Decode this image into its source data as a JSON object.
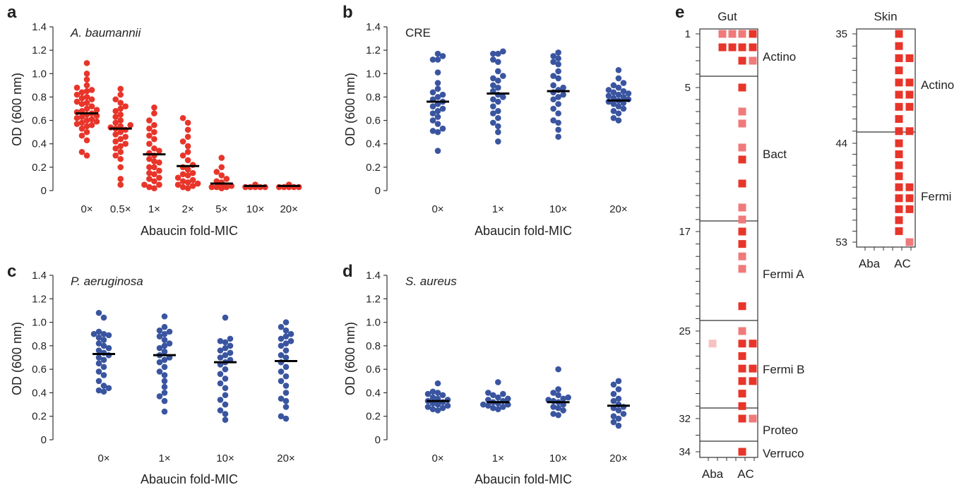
{
  "panels": [
    {
      "id": "a",
      "letter": "a",
      "label": "A. baumannii",
      "label_italic": true,
      "xlabel": "Abaucin fold-MIC",
      "ylabel": "OD (600 nm)"
    },
    {
      "id": "b",
      "letter": "b",
      "label": "CRE",
      "label_italic": false,
      "xlabel": "Abaucin fold-MIC",
      "ylabel": "OD (600 nm)"
    },
    {
      "id": "c",
      "letter": "c",
      "label": "P. aeruginosa",
      "label_italic": true,
      "xlabel": "Abaucin fold-MIC",
      "ylabel": "OD (600 nm)"
    },
    {
      "id": "d",
      "letter": "d",
      "label": "S. aureus",
      "label_italic": true,
      "xlabel": "Abaucin fold-MIC",
      "ylabel": "OD (600 nm)"
    },
    {
      "id": "e",
      "letter": "e"
    }
  ],
  "chart_data": [
    {
      "panel": "a",
      "type": "scatter",
      "label": "A. baumannii",
      "xlabel": "Abaucin fold-MIC",
      "ylabel": "OD (600 nm)",
      "ylim": [
        0,
        1.4
      ],
      "yticks": [
        "0",
        "0.2",
        "0.4",
        "0.6",
        "0.8",
        "1.0",
        "1.2",
        "1.4"
      ],
      "color": "#e8352a",
      "categories": [
        "0×",
        "0.5×",
        "1×",
        "2×",
        "5×",
        "10×",
        "20×"
      ],
      "medians": [
        0.66,
        0.53,
        0.31,
        0.21,
        0.06,
        0.04,
        0.04
      ],
      "groups": [
        [
          1.09,
          1.0,
          0.95,
          0.9,
          0.88,
          0.86,
          0.85,
          0.84,
          0.82,
          0.8,
          0.79,
          0.78,
          0.76,
          0.75,
          0.74,
          0.72,
          0.7,
          0.69,
          0.68,
          0.67,
          0.66,
          0.65,
          0.64,
          0.63,
          0.62,
          0.61,
          0.6,
          0.59,
          0.58,
          0.57,
          0.56,
          0.55,
          0.53,
          0.5,
          0.47,
          0.43,
          0.33,
          0.3
        ],
        [
          0.87,
          0.82,
          0.78,
          0.75,
          0.72,
          0.7,
          0.68,
          0.65,
          0.63,
          0.6,
          0.58,
          0.56,
          0.55,
          0.54,
          0.53,
          0.52,
          0.5,
          0.48,
          0.46,
          0.44,
          0.42,
          0.4,
          0.38,
          0.36,
          0.33,
          0.3,
          0.27,
          0.2,
          0.1,
          0.05
        ],
        [
          0.71,
          0.66,
          0.6,
          0.56,
          0.53,
          0.5,
          0.47,
          0.44,
          0.4,
          0.36,
          0.34,
          0.32,
          0.3,
          0.27,
          0.24,
          0.2,
          0.17,
          0.14,
          0.11,
          0.08,
          0.05,
          0.03,
          0.02,
          0.2,
          0.15,
          0.1,
          0.05,
          0.25
        ],
        [
          0.62,
          0.58,
          0.52,
          0.46,
          0.42,
          0.38,
          0.33,
          0.3,
          0.26,
          0.22,
          0.2,
          0.18,
          0.15,
          0.13,
          0.11,
          0.09,
          0.07,
          0.06,
          0.05,
          0.04,
          0.03,
          0.02,
          0.14,
          0.08
        ],
        [
          0.28,
          0.2,
          0.16,
          0.13,
          0.1,
          0.08,
          0.07,
          0.06,
          0.05,
          0.05,
          0.04,
          0.04,
          0.04,
          0.03,
          0.03,
          0.03,
          0.02
        ],
        [
          0.05,
          0.05,
          0.05,
          0.04,
          0.04,
          0.04,
          0.04,
          0.04,
          0.04,
          0.03,
          0.03,
          0.03,
          0.03,
          0.03
        ],
        [
          0.05,
          0.05,
          0.05,
          0.04,
          0.04,
          0.04,
          0.04,
          0.04,
          0.04,
          0.03,
          0.03,
          0.03,
          0.03,
          0.03
        ]
      ]
    },
    {
      "panel": "b",
      "type": "scatter",
      "label": "CRE",
      "xlabel": "Abaucin fold-MIC",
      "ylabel": "OD (600 nm)",
      "ylim": [
        0,
        1.4
      ],
      "yticks": [
        "0",
        "0.2",
        "0.4",
        "0.6",
        "0.8",
        "1.0",
        "1.2",
        "1.4"
      ],
      "color": "#3a55a0",
      "categories": [
        "0×",
        "1×",
        "10×",
        "20×"
      ],
      "medians": [
        0.76,
        0.83,
        0.85,
        0.77
      ],
      "groups": [
        [
          1.17,
          1.15,
          1.12,
          1.12,
          1.01,
          0.92,
          0.87,
          0.84,
          0.82,
          0.8,
          0.78,
          0.76,
          0.74,
          0.72,
          0.7,
          0.68,
          0.66,
          0.63,
          0.6,
          0.57,
          0.53,
          0.51,
          0.5,
          0.34
        ],
        [
          1.19,
          1.17,
          1.17,
          1.12,
          1.1,
          1.02,
          0.98,
          0.96,
          0.94,
          0.9,
          0.88,
          0.85,
          0.82,
          0.8,
          0.78,
          0.76,
          0.72,
          0.68,
          0.66,
          0.62,
          0.58,
          0.55,
          0.5,
          0.42
        ],
        [
          1.18,
          1.15,
          1.13,
          1.1,
          1.08,
          1.02,
          0.98,
          0.96,
          0.9,
          0.88,
          0.86,
          0.84,
          0.82,
          0.8,
          0.78,
          0.74,
          0.7,
          0.66,
          0.6,
          0.58,
          0.52,
          0.46
        ],
        [
          1.03,
          0.96,
          0.92,
          0.9,
          0.88,
          0.86,
          0.85,
          0.84,
          0.83,
          0.82,
          0.81,
          0.8,
          0.79,
          0.78,
          0.77,
          0.76,
          0.75,
          0.74,
          0.72,
          0.7,
          0.68,
          0.66,
          0.62,
          0.6
        ]
      ]
    },
    {
      "panel": "c",
      "type": "scatter",
      "label": "P. aeruginosa",
      "xlabel": "Abaucin fold-MIC",
      "ylabel": "OD (600 nm)",
      "ylim": [
        0,
        1.4
      ],
      "yticks": [
        "0",
        "0.2",
        "0.4",
        "0.6",
        "0.8",
        "1.0",
        "1.2",
        "1.4"
      ],
      "color": "#3a55a0",
      "categories": [
        "0×",
        "1×",
        "10×",
        "20×"
      ],
      "medians": [
        0.73,
        0.72,
        0.66,
        0.67
      ],
      "groups": [
        [
          1.08,
          1.04,
          0.92,
          0.9,
          0.9,
          0.89,
          0.87,
          0.85,
          0.82,
          0.8,
          0.78,
          0.76,
          0.74,
          0.72,
          0.7,
          0.68,
          0.65,
          0.62,
          0.58,
          0.55,
          0.5,
          0.46,
          0.44,
          0.42,
          0.41
        ],
        [
          1.05,
          0.96,
          0.93,
          0.92,
          0.9,
          0.88,
          0.85,
          0.82,
          0.8,
          0.78,
          0.75,
          0.72,
          0.7,
          0.68,
          0.66,
          0.62,
          0.58,
          0.55,
          0.5,
          0.45,
          0.4,
          0.37,
          0.33,
          0.24
        ],
        [
          1.04,
          0.86,
          0.84,
          0.83,
          0.8,
          0.78,
          0.76,
          0.74,
          0.72,
          0.7,
          0.68,
          0.66,
          0.64,
          0.6,
          0.56,
          0.52,
          0.48,
          0.44,
          0.38,
          0.34,
          0.3,
          0.25,
          0.22,
          0.17
        ],
        [
          1.0,
          0.96,
          0.93,
          0.9,
          0.88,
          0.86,
          0.84,
          0.82,
          0.8,
          0.76,
          0.72,
          0.7,
          0.66,
          0.62,
          0.58,
          0.54,
          0.5,
          0.46,
          0.4,
          0.35,
          0.33,
          0.28,
          0.2,
          0.18
        ]
      ]
    },
    {
      "panel": "d",
      "type": "scatter",
      "label": "S. aureus",
      "xlabel": "Abaucin fold-MIC",
      "ylabel": "OD (600 nm)",
      "ylim": [
        0,
        1.4
      ],
      "yticks": [
        "0",
        "0.2",
        "0.4",
        "0.6",
        "0.8",
        "1.0",
        "1.2",
        "1.4"
      ],
      "color": "#3a55a0",
      "categories": [
        "0×",
        "1×",
        "10×",
        "20×"
      ],
      "medians": [
        0.33,
        0.32,
        0.32,
        0.29
      ],
      "groups": [
        [
          0.48,
          0.41,
          0.4,
          0.39,
          0.38,
          0.36,
          0.35,
          0.34,
          0.33,
          0.32,
          0.31,
          0.3,
          0.29,
          0.28,
          0.27,
          0.26,
          0.25
        ],
        [
          0.49,
          0.4,
          0.39,
          0.38,
          0.36,
          0.35,
          0.34,
          0.33,
          0.32,
          0.31,
          0.3,
          0.3,
          0.29,
          0.28,
          0.27,
          0.26
        ],
        [
          0.6,
          0.43,
          0.4,
          0.38,
          0.36,
          0.35,
          0.34,
          0.33,
          0.32,
          0.3,
          0.28,
          0.27,
          0.25,
          0.22,
          0.21
        ],
        [
          0.5,
          0.47,
          0.43,
          0.39,
          0.35,
          0.33,
          0.3,
          0.28,
          0.27,
          0.25,
          0.22,
          0.2,
          0.18,
          0.15,
          0.12
        ]
      ]
    },
    {
      "panel": "e",
      "type": "heatmap",
      "columns": [
        "Aba",
        "AC"
      ],
      "colors": {
        "strong": "#e8352a",
        "medium": "#f07a7a",
        "light": "#f6c2c2"
      },
      "blocks": [
        {
          "title": "Gut",
          "row_range": [
            1,
            34
          ],
          "row_ticks": [
            "1",
            "5",
            "17",
            "25",
            "32",
            "34"
          ],
          "groups": [
            {
              "name": "Actino",
              "rows": [
                1,
                4
              ]
            },
            {
              "name": "Bact",
              "rows": [
                5,
                16
              ]
            },
            {
              "name": "Fermi A",
              "rows": [
                17,
                24
              ]
            },
            {
              "name": "Fermi B",
              "rows": [
                25,
                31
              ]
            },
            {
              "name": "Proteo",
              "rows": [
                32,
                33
              ]
            },
            {
              "name": "Verruco",
              "rows": [
                34,
                34
              ]
            }
          ],
          "cells": [
            {
              "row": 1,
              "col": 3,
              "level": "medium"
            },
            {
              "row": 1,
              "col": 4,
              "level": "medium"
            },
            {
              "row": 1,
              "col": 5,
              "level": "medium"
            },
            {
              "row": 1,
              "col": 6,
              "level": "strong"
            },
            {
              "row": 2,
              "col": 3,
              "level": "strong"
            },
            {
              "row": 2,
              "col": 4,
              "level": "strong"
            },
            {
              "row": 2,
              "col": 5,
              "level": "strong"
            },
            {
              "row": 2,
              "col": 6,
              "level": "strong"
            },
            {
              "row": 3,
              "col": 5,
              "level": "strong"
            },
            {
              "row": 3,
              "col": 6,
              "level": "medium"
            },
            {
              "row": 5,
              "col": 5,
              "level": "strong"
            },
            {
              "row": 7,
              "col": 5,
              "level": "medium"
            },
            {
              "row": 8,
              "col": 5,
              "level": "medium"
            },
            {
              "row": 10,
              "col": 5,
              "level": "medium"
            },
            {
              "row": 11,
              "col": 5,
              "level": "strong"
            },
            {
              "row": 13,
              "col": 5,
              "level": "strong"
            },
            {
              "row": 15,
              "col": 5,
              "level": "medium"
            },
            {
              "row": 16,
              "col": 5,
              "level": "medium"
            },
            {
              "row": 17,
              "col": 5,
              "level": "strong"
            },
            {
              "row": 18,
              "col": 5,
              "level": "strong"
            },
            {
              "row": 19,
              "col": 5,
              "level": "medium"
            },
            {
              "row": 20,
              "col": 5,
              "level": "medium"
            },
            {
              "row": 23,
              "col": 5,
              "level": "strong"
            },
            {
              "row": 25,
              "col": 5,
              "level": "medium"
            },
            {
              "row": 26,
              "col": 1,
              "level": "light"
            },
            {
              "row": 26,
              "col": 5,
              "level": "strong"
            },
            {
              "row": 26,
              "col": 6,
              "level": "strong"
            },
            {
              "row": 27,
              "col": 5,
              "level": "strong"
            },
            {
              "row": 28,
              "col": 5,
              "level": "strong"
            },
            {
              "row": 28,
              "col": 6,
              "level": "strong"
            },
            {
              "row": 29,
              "col": 5,
              "level": "strong"
            },
            {
              "row": 29,
              "col": 6,
              "level": "strong"
            },
            {
              "row": 30,
              "col": 5,
              "level": "strong"
            },
            {
              "row": 31,
              "col": 5,
              "level": "strong"
            },
            {
              "row": 32,
              "col": 5,
              "level": "strong"
            },
            {
              "row": 32,
              "col": 6,
              "level": "medium"
            },
            {
              "row": 34,
              "col": 5,
              "level": "strong"
            }
          ]
        },
        {
          "title": "Skin",
          "row_range": [
            35,
            53
          ],
          "row_ticks": [
            "35",
            "44",
            "53"
          ],
          "groups": [
            {
              "name": "Actino",
              "rows": [
                35,
                43
              ]
            },
            {
              "name": "Fermi",
              "rows": [
                44,
                53
              ]
            }
          ],
          "cells": [
            {
              "row": 35,
              "col": 5,
              "level": "strong"
            },
            {
              "row": 36,
              "col": 5,
              "level": "strong"
            },
            {
              "row": 37,
              "col": 5,
              "level": "strong"
            },
            {
              "row": 37,
              "col": 6,
              "level": "strong"
            },
            {
              "row": 38,
              "col": 5,
              "level": "strong"
            },
            {
              "row": 39,
              "col": 5,
              "level": "strong"
            },
            {
              "row": 39,
              "col": 6,
              "level": "strong"
            },
            {
              "row": 40,
              "col": 5,
              "level": "strong"
            },
            {
              "row": 40,
              "col": 6,
              "level": "strong"
            },
            {
              "row": 41,
              "col": 5,
              "level": "strong"
            },
            {
              "row": 41,
              "col": 6,
              "level": "strong"
            },
            {
              "row": 42,
              "col": 5,
              "level": "strong"
            },
            {
              "row": 43,
              "col": 5,
              "level": "strong"
            },
            {
              "row": 43,
              "col": 6,
              "level": "strong"
            },
            {
              "row": 44,
              "col": 5,
              "level": "strong"
            },
            {
              "row": 45,
              "col": 5,
              "level": "strong"
            },
            {
              "row": 46,
              "col": 5,
              "level": "strong"
            },
            {
              "row": 47,
              "col": 5,
              "level": "strong"
            },
            {
              "row": 48,
              "col": 5,
              "level": "strong"
            },
            {
              "row": 48,
              "col": 6,
              "level": "strong"
            },
            {
              "row": 49,
              "col": 5,
              "level": "strong"
            },
            {
              "row": 49,
              "col": 6,
              "level": "strong"
            },
            {
              "row": 50,
              "col": 5,
              "level": "strong"
            },
            {
              "row": 50,
              "col": 6,
              "level": "strong"
            },
            {
              "row": 51,
              "col": 5,
              "level": "strong"
            },
            {
              "row": 52,
              "col": 5,
              "level": "strong"
            },
            {
              "row": 53,
              "col": 6,
              "level": "medium"
            }
          ]
        }
      ]
    }
  ]
}
